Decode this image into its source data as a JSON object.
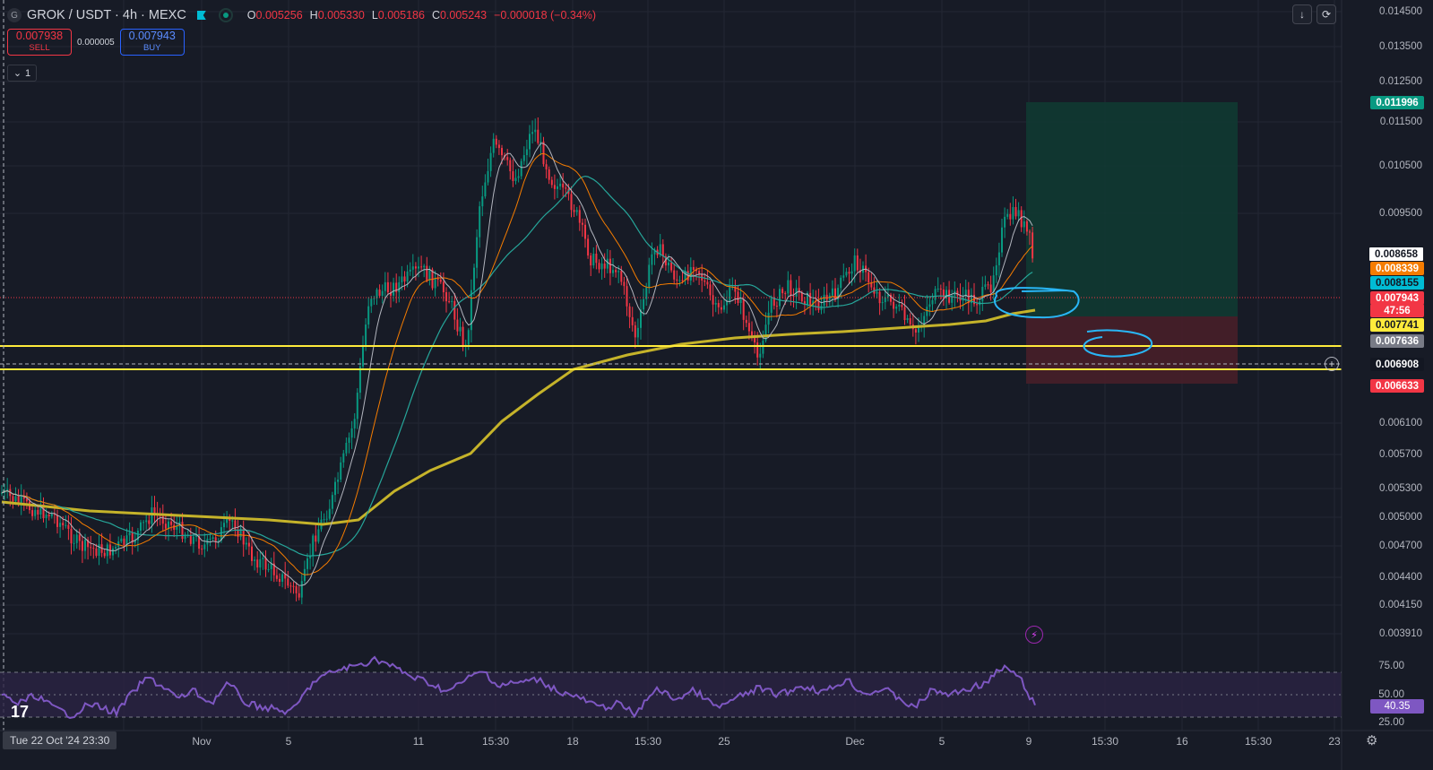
{
  "header": {
    "logo_letter": "G",
    "symbol_title": "GROK / USDT · 4h · MEXC",
    "ohlc": {
      "o_label": "O",
      "o_value": "0.005256",
      "h_label": "H",
      "h_value": "0.005330",
      "l_label": "L",
      "l_value": "0.005186",
      "c_label": "C",
      "c_value": "0.005243",
      "change": "−0.000018 (−0.34%)"
    }
  },
  "trade": {
    "sell_price": "0.007938",
    "sell_label": "SELL",
    "spread": "0.000005",
    "buy_price": "0.007943",
    "buy_label": "BUY"
  },
  "collapse": {
    "chevron": "⌄",
    "count": "1"
  },
  "price_axis": {
    "ticks": [
      "0.014500",
      "0.013500",
      "0.012500",
      "0.011500",
      "0.010500",
      "0.009500",
      "0.006100",
      "0.005700",
      "0.005300",
      "0.005000",
      "0.004700",
      "0.004400",
      "0.004150",
      "0.003910"
    ]
  },
  "price_labels": [
    {
      "text": "0.011996",
      "bg": "#089981",
      "fg": "#ffffff"
    },
    {
      "text": "0.008658",
      "bg": "#ffffff",
      "fg": "#131722"
    },
    {
      "text": "0.008339",
      "bg": "#f57c00",
      "fg": "#ffffff"
    },
    {
      "text": "0.008155",
      "bg": "#00bcd4",
      "fg": "#131722"
    },
    {
      "text": "0.007943",
      "bg": "#f23645",
      "fg": "#ffffff"
    },
    {
      "text": "47:56",
      "bg": "#f23645",
      "fg": "#ffffff"
    },
    {
      "text": "0.007741",
      "bg": "#ffeb3b",
      "fg": "#131722"
    },
    {
      "text": "0.007636",
      "bg": "#787b86",
      "fg": "#ffffff"
    },
    {
      "text": "0.006908",
      "bg": "#131722",
      "fg": "#ffffff"
    },
    {
      "text": "0.006633",
      "bg": "#f23645",
      "fg": "#ffffff"
    }
  ],
  "time_axis": {
    "badge": "Tue 22 Oct '24   23:30",
    "ticks": [
      "Nov",
      "5",
      "11",
      "15:30",
      "18",
      "15:30",
      "25",
      "Dec",
      "5",
      "9",
      "15:30",
      "16",
      "15:30",
      "23"
    ]
  },
  "rsi": {
    "levels": [
      "75.00",
      "50.00",
      "25.00"
    ],
    "value": "40.35"
  },
  "colors": {
    "background": "#171b26",
    "up": "#089981",
    "down": "#f23645",
    "ma_fast": "#b2b5be",
    "ma_mid": "#f57c00",
    "ma_slow": "#26a69a",
    "ma_long": "#c5b32a",
    "rsi": "#7e57c2",
    "level_lines": "#ffeb3b",
    "annotation": "#29b6f6"
  },
  "icons": {
    "tv_logo": "tradingview-logo",
    "alert": "lightning-icon",
    "settings": "gear-icon",
    "plus": "plus-icon",
    "download": "arrow-down-icon",
    "refresh": "refresh-icon"
  }
}
